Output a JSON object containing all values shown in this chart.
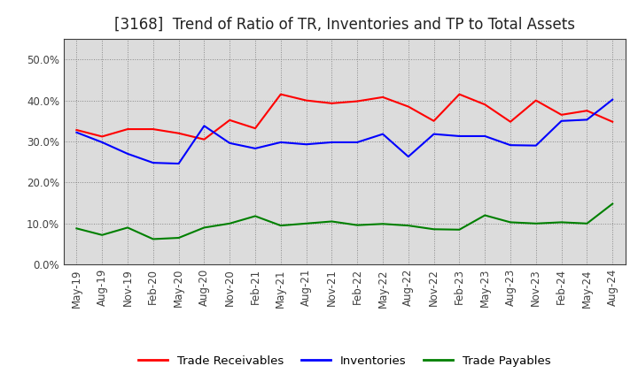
{
  "title": "[3168]  Trend of Ratio of TR, Inventories and TP to Total Assets",
  "x_labels": [
    "May-19",
    "Aug-19",
    "Nov-19",
    "Feb-20",
    "May-20",
    "Aug-20",
    "Nov-20",
    "Feb-21",
    "May-21",
    "Aug-21",
    "Nov-21",
    "Feb-22",
    "May-22",
    "Aug-22",
    "Nov-22",
    "Feb-23",
    "May-23",
    "Aug-23",
    "Nov-23",
    "Feb-24",
    "May-24",
    "Aug-24"
  ],
  "trade_receivables": [
    0.328,
    0.312,
    0.33,
    0.33,
    0.32,
    0.305,
    0.352,
    0.332,
    0.415,
    0.4,
    0.393,
    0.398,
    0.408,
    0.385,
    0.35,
    0.415,
    0.39,
    0.348,
    0.4,
    0.365,
    0.375,
    0.348
  ],
  "inventories": [
    0.322,
    0.298,
    0.27,
    0.248,
    0.246,
    0.338,
    0.296,
    0.283,
    0.298,
    0.293,
    0.298,
    0.298,
    0.318,
    0.263,
    0.318,
    0.313,
    0.313,
    0.291,
    0.29,
    0.35,
    0.353,
    0.402
  ],
  "trade_payables": [
    0.088,
    0.072,
    0.09,
    0.062,
    0.065,
    0.09,
    0.1,
    0.118,
    0.095,
    0.1,
    0.105,
    0.096,
    0.099,
    0.095,
    0.086,
    0.085,
    0.12,
    0.103,
    0.1,
    0.103,
    0.1,
    0.148
  ],
  "ylim": [
    0.0,
    0.55
  ],
  "yticks": [
    0.0,
    0.1,
    0.2,
    0.3,
    0.4,
    0.5
  ],
  "line_colors": {
    "trade_receivables": "#FF0000",
    "inventories": "#0000FF",
    "trade_payables": "#008000"
  },
  "legend_labels": [
    "Trade Receivables",
    "Inventories",
    "Trade Payables"
  ],
  "background_color": "#FFFFFF",
  "plot_bg_color": "#DCDCDC",
  "grid_color": "#888888",
  "title_fontsize": 12,
  "label_fontsize": 8.5,
  "legend_fontsize": 9.5,
  "tick_color": "#404040",
  "spine_color": "#404040"
}
